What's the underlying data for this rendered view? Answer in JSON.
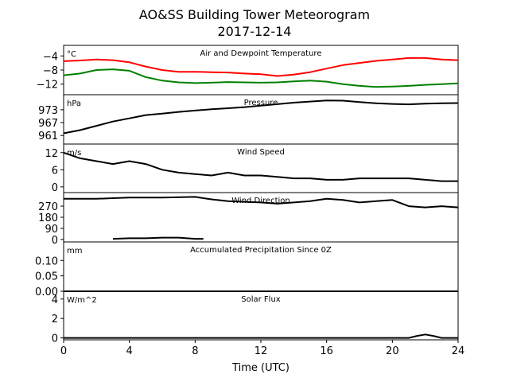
{
  "chart_data": {
    "type": "line",
    "title": "AO&SS Building Tower Meteorogram",
    "subtitle": "2017-12-14",
    "xlabel": "Time (UTC)",
    "xlim": [
      0,
      24
    ],
    "x_ticks": [
      "0",
      "4",
      "8",
      "12",
      "16",
      "20",
      "24"
    ],
    "panels": [
      {
        "title": "Air and Dewpoint Temperature",
        "unit": "°C",
        "ylim": [
          -15,
          -1
        ],
        "yticks": [
          "−4",
          "−8",
          "−12"
        ],
        "ytick_values": [
          -4,
          -8,
          -12
        ],
        "series": [
          {
            "color": "#ff0000",
            "x": [
              0,
              1,
              2,
              3,
              4,
              5,
              6,
              7,
              8,
              9,
              10,
              11,
              12,
              13,
              14,
              15,
              16,
              17,
              18,
              19,
              20,
              21,
              22,
              23,
              24
            ],
            "y": [
              -5.5,
              -5.3,
              -5.0,
              -5.2,
              -5.8,
              -7.0,
              -8.0,
              -8.5,
              -8.5,
              -8.6,
              -8.7,
              -9.0,
              -9.2,
              -9.7,
              -9.3,
              -8.6,
              -7.6,
              -6.6,
              -6.0,
              -5.4,
              -5.0,
              -4.6,
              -4.6,
              -5.0,
              -5.2
            ]
          },
          {
            "color": "#008000",
            "x": [
              0,
              1,
              2,
              3,
              4,
              5,
              6,
              7,
              8,
              9,
              10,
              11,
              12,
              13,
              14,
              15,
              16,
              17,
              18,
              19,
              20,
              21,
              22,
              23,
              24
            ],
            "y": [
              -9.5,
              -9.0,
              -8.0,
              -7.8,
              -8.2,
              -10.0,
              -11.0,
              -11.5,
              -11.7,
              -11.6,
              -11.4,
              -11.5,
              -11.6,
              -11.5,
              -11.2,
              -11.0,
              -11.3,
              -12.0,
              -12.5,
              -12.8,
              -12.7,
              -12.5,
              -12.2,
              -12.0,
              -11.8
            ]
          }
        ]
      },
      {
        "title": "Pressure",
        "unit": "hPa",
        "ylim": [
          957,
          980
        ],
        "yticks": [
          "973",
          "967",
          "961"
        ],
        "ytick_values": [
          973,
          967,
          961
        ],
        "series": [
          {
            "color": "#000000",
            "x": [
              0,
              1,
              2,
              3,
              4,
              5,
              6,
              7,
              8,
              9,
              10,
              11,
              12,
              13,
              14,
              15,
              16,
              17,
              18,
              19,
              20,
              21,
              22,
              23,
              24
            ],
            "y": [
              962.0,
              963.5,
              965.5,
              967.5,
              969.0,
              970.5,
              971.2,
              972.0,
              972.6,
              973.2,
              973.7,
              974.2,
              974.9,
              975.6,
              976.3,
              976.8,
              977.3,
              977.2,
              976.6,
              976.0,
              975.7,
              975.5,
              975.8,
              976.0,
              976.1
            ]
          }
        ]
      },
      {
        "title": "Wind Speed",
        "unit": "m/s",
        "ylim": [
          -2,
          15
        ],
        "yticks": [
          "12",
          "6",
          "0"
        ],
        "ytick_values": [
          12,
          6,
          0
        ],
        "series": [
          {
            "color": "#000000",
            "x": [
              0,
              1,
              2,
              3,
              4,
              5,
              6,
              7,
              8,
              9,
              10,
              11,
              12,
              13,
              14,
              15,
              16,
              17,
              18,
              19,
              20,
              21,
              22,
              23,
              24
            ],
            "y": [
              12,
              10,
              9,
              8,
              9,
              8,
              6,
              5,
              4.5,
              4,
              5,
              4,
              4,
              3.5,
              3,
              3,
              2.5,
              2.5,
              3,
              3,
              3,
              3,
              2.5,
              2,
              2
            ]
          }
        ]
      },
      {
        "title": "Wind Direction",
        "unit": "",
        "ylim": [
          -20,
          380
        ],
        "yticks": [
          "270",
          "180",
          "90",
          "0"
        ],
        "ytick_values": [
          270,
          180,
          90,
          0
        ],
        "series": [
          {
            "color": "#000000",
            "x": [
              0,
              2,
              3,
              4,
              6,
              8,
              9,
              10,
              12,
              13,
              14,
              15,
              16,
              17,
              18,
              19,
              20,
              21,
              22,
              23,
              24
            ],
            "y": [
              330,
              330,
              335,
              340,
              340,
              345,
              325,
              310,
              300,
              290,
              300,
              310,
              330,
              320,
              300,
              310,
              320,
              270,
              260,
              270,
              260
            ]
          },
          {
            "color": "#000000",
            "x": [
              3,
              4,
              5,
              6,
              7,
              8,
              8.5
            ],
            "y": [
              5,
              10,
              10,
              15,
              15,
              5,
              5
            ]
          }
        ]
      },
      {
        "title": "Accumulated Precipitation Since 0Z",
        "unit": "mm",
        "ylim": [
          0,
          0.16
        ],
        "yticks": [
          "0.10",
          "0.05",
          "0.00"
        ],
        "ytick_values": [
          0.1,
          0.05,
          0.0
        ],
        "series": [
          {
            "color": "#000000",
            "x": [
              0,
              24
            ],
            "y": [
              0,
              0
            ]
          }
        ]
      },
      {
        "title": "Solar Flux",
        "unit": "W/m^2",
        "ylim": [
          -0.2,
          4.8
        ],
        "yticks": [
          "4",
          "2",
          "0"
        ],
        "ytick_values": [
          4,
          2,
          0
        ],
        "series": [
          {
            "color": "#000000",
            "x": [
              0,
              21,
              21.5,
              22,
              22.5,
              23,
              24
            ],
            "y": [
              0,
              0,
              0.2,
              0.35,
              0.2,
              0,
              0
            ]
          }
        ]
      }
    ]
  }
}
